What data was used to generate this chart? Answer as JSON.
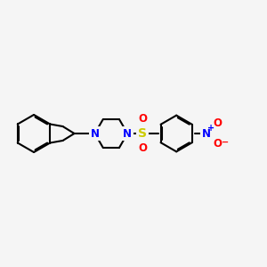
{
  "bg_color": "#f5f5f5",
  "bond_color": "#000000",
  "bond_width": 1.5,
  "atom_colors": {
    "N": "#0000ff",
    "S": "#cccc00",
    "O": "#ff0000",
    "C": "#000000"
  },
  "font_size_atoms": 8.5,
  "fig_size": [
    3.0,
    3.0
  ],
  "dpi": 100
}
